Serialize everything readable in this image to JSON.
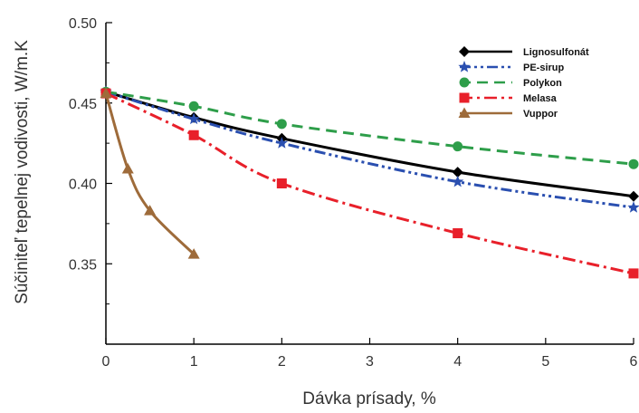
{
  "chart_data": {
    "type": "line",
    "xlabel": "Dávka prísady, %",
    "ylabel": "Súčiniteľ tepelnej vodivosti, W/m.K",
    "xlim": [
      0,
      6
    ],
    "ylim": [
      0.3,
      0.5
    ],
    "x_ticks": [
      "0",
      "1",
      "2",
      "3",
      "4",
      "5",
      "6"
    ],
    "y_ticks": [
      "0.35",
      "0.40",
      "0.45",
      "0.50"
    ],
    "legend_position": "top-right",
    "grid": false,
    "series": [
      {
        "name": "Lignosulfonát",
        "color": "#000000",
        "marker": "diamond",
        "dash": "solid",
        "x": [
          0,
          1,
          2,
          4,
          6
        ],
        "y": [
          0.457,
          0.441,
          0.428,
          0.407,
          0.392
        ]
      },
      {
        "name": "PE-sirup",
        "color": "#2a4fb0",
        "marker": "star",
        "dash": "dash-dot-dot",
        "x": [
          0,
          1,
          2,
          4,
          6
        ],
        "y": [
          0.457,
          0.44,
          0.425,
          0.401,
          0.385
        ]
      },
      {
        "name": "Polykon",
        "color": "#2e9e4a",
        "marker": "circle",
        "dash": "dash",
        "x": [
          0,
          1,
          2,
          4,
          6
        ],
        "y": [
          0.457,
          0.448,
          0.437,
          0.423,
          0.412
        ]
      },
      {
        "name": "Melasa",
        "color": "#e8202a",
        "marker": "square",
        "dash": "dash-dot",
        "x": [
          0,
          1,
          2,
          4,
          6
        ],
        "y": [
          0.456,
          0.43,
          0.4,
          0.369,
          0.344
        ]
      },
      {
        "name": "Vuppor",
        "color": "#9e6b3a",
        "marker": "triangle",
        "dash": "solid",
        "x": [
          0,
          0.25,
          0.5,
          1
        ],
        "y": [
          0.456,
          0.409,
          0.383,
          0.356
        ]
      }
    ]
  }
}
